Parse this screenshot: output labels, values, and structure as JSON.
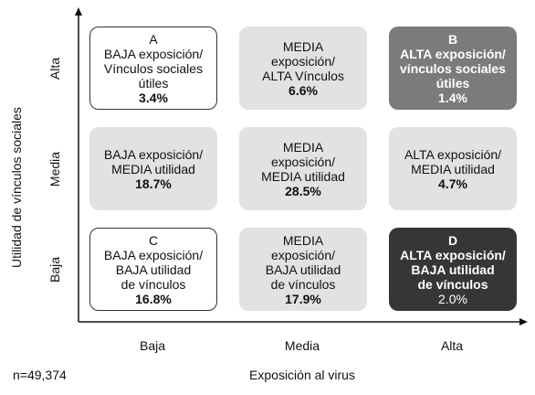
{
  "axes": {
    "y_title": "Utilidad de vínculos sociales",
    "y_levels": [
      "Alta",
      "Media",
      "Baja"
    ],
    "x_title": "Exposición al virus",
    "x_levels": [
      "Baja",
      "Media",
      "Alta"
    ]
  },
  "note": "n=49,374",
  "cells": [
    [
      {
        "letter": "A",
        "lines": [
          "BAJA exposición/",
          "Vínculos sociales",
          "útiles"
        ],
        "share": "3.4%"
      },
      {
        "lines": [
          "MEDIA",
          "exposición/",
          "ALTA Vínculos"
        ],
        "share": "6.6%"
      },
      {
        "letter": "B",
        "lines": [
          "ALTA exposición/",
          "vínculos sociales",
          "útiles"
        ],
        "share": "1.4%"
      }
    ],
    [
      {
        "lines": [
          "BAJA exposición/",
          "MEDIA utilidad"
        ],
        "share": "18.7%"
      },
      {
        "lines": [
          "MEDIA",
          "exposición/",
          "MEDIA utilidad"
        ],
        "share": "28.5%"
      },
      {
        "lines": [
          "ALTA exposición/",
          "MEDIA utilidad"
        ],
        "share": "4.7%"
      }
    ],
    [
      {
        "letter": "C",
        "lines": [
          "BAJA exposición/",
          "BAJA utilidad",
          "de vínculos"
        ],
        "share": "16.8%"
      },
      {
        "lines": [
          "MEDIA",
          "exposición/",
          "BAJA utilidad",
          "de vínculos"
        ],
        "share": "17.9%"
      },
      {
        "letter": "D",
        "lines": [
          "ALTA exposición/",
          "BAJA utilidad",
          "de vínculos"
        ],
        "share": "2.0%"
      }
    ]
  ]
}
